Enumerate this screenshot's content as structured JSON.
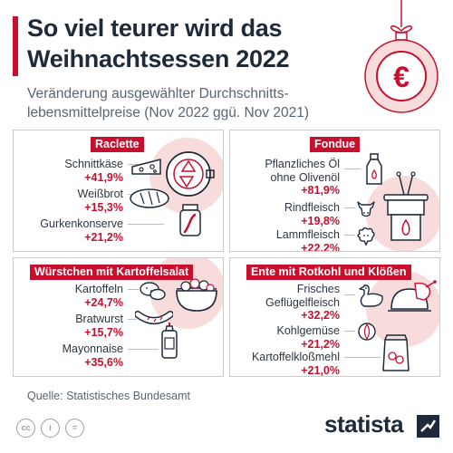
{
  "title_line1": "So viel teurer wird das",
  "title_line2": "Weihnachtsessen 2022",
  "subtitle_line1": "Veränderung ausgewählter Durchschnitts-",
  "subtitle_line2": "lebensmittelpreise (Nov 2022 ggü. Nov 2021)",
  "ornament_symbol": "€",
  "colors": {
    "accent": "#c8102e",
    "text": "#1e2a3a",
    "circle": "#f8dcdc",
    "muted": "#5a6470"
  },
  "chart_data": {
    "type": "table",
    "unit": "%",
    "groups": [
      {
        "name": "Raclette",
        "items": [
          {
            "label": "Schnittkäse",
            "value": 41.9,
            "display": "+41,9%"
          },
          {
            "label": "Weißbrot",
            "value": 15.3,
            "display": "+15,3%"
          },
          {
            "label": "Gurkenkonserve",
            "value": 21.2,
            "display": "+21,2%"
          }
        ]
      },
      {
        "name": "Fondue",
        "items": [
          {
            "label_lines": [
              "Pflanzliches Öl",
              "ohne Olivenöl"
            ],
            "value": 81.9,
            "display": "+81,9%"
          },
          {
            "label": "Rindfleisch",
            "value": 19.8,
            "display": "+19,8%"
          },
          {
            "label": "Lammfleisch",
            "value": 22.2,
            "display": "+22,2%"
          }
        ]
      },
      {
        "name": "Würstchen mit Kartoffelsalat",
        "items": [
          {
            "label": "Kartoffeln",
            "value": 24.7,
            "display": "+24,7%"
          },
          {
            "label": "Bratwurst",
            "value": 15.7,
            "display": "+15,7%"
          },
          {
            "label": "Mayonnaise",
            "value": 35.6,
            "display": "+35,6%"
          }
        ]
      },
      {
        "name": "Ente mit Rotkohl und Klößen",
        "items": [
          {
            "label_lines": [
              "Frisches",
              "Geflügelfleisch"
            ],
            "value": 32.2,
            "display": "+32,2%"
          },
          {
            "label": "Kohlgemüse",
            "value": 21.2,
            "display": "+21,2%"
          },
          {
            "label": "Kartoffelkloßmehl",
            "value": 21.0,
            "display": "+21,0%"
          }
        ]
      }
    ]
  },
  "source": "Quelle: Statistisches Bundesamt",
  "license_icons": [
    "cc-icon",
    "attribution-icon",
    "no-derivatives-icon"
  ],
  "license_labels": [
    "cc",
    "i",
    "="
  ],
  "brand": "statista"
}
